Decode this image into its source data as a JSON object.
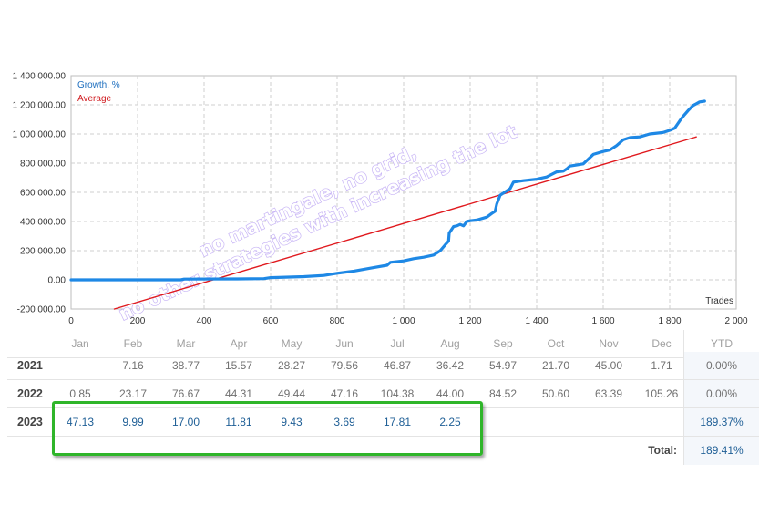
{
  "chart_data": {
    "type": "line",
    "xlabel": "Trades",
    "xlim": [
      0,
      2000
    ],
    "ylim": [
      -200000,
      1400000
    ],
    "x_ticks": [
      "0",
      "200",
      "400",
      "600",
      "800",
      "1 000",
      "1 200",
      "1 400",
      "1 600",
      "1 800",
      "2 000"
    ],
    "y_ticks": [
      "1 400 000.00",
      "1 200 000.00",
      "1 000 000.00",
      "800 000.00",
      "600 000.00",
      "400 000.00",
      "200 000.00",
      "0.00",
      "-200 000.00"
    ],
    "grid": true,
    "legend_position": "top-left",
    "series": [
      {
        "name": "Growth, %",
        "color": "#1e88e5",
        "points": [
          [
            0,
            0
          ],
          [
            100,
            0
          ],
          [
            200,
            0
          ],
          [
            330,
            0
          ],
          [
            340,
            5000
          ],
          [
            500,
            6000
          ],
          [
            580,
            8000
          ],
          [
            600,
            15000
          ],
          [
            700,
            22000
          ],
          [
            760,
            30000
          ],
          [
            800,
            45000
          ],
          [
            850,
            60000
          ],
          [
            900,
            80000
          ],
          [
            950,
            100000
          ],
          [
            960,
            120000
          ],
          [
            1000,
            130000
          ],
          [
            1030,
            145000
          ],
          [
            1060,
            155000
          ],
          [
            1090,
            170000
          ],
          [
            1110,
            200000
          ],
          [
            1125,
            240000
          ],
          [
            1135,
            265000
          ],
          [
            1137,
            320000
          ],
          [
            1150,
            365000
          ],
          [
            1160,
            370000
          ],
          [
            1170,
            380000
          ],
          [
            1180,
            370000
          ],
          [
            1190,
            400000
          ],
          [
            1200,
            405000
          ],
          [
            1220,
            410000
          ],
          [
            1250,
            430000
          ],
          [
            1265,
            455000
          ],
          [
            1275,
            470000
          ],
          [
            1280,
            520000
          ],
          [
            1290,
            580000
          ],
          [
            1300,
            595000
          ],
          [
            1310,
            610000
          ],
          [
            1320,
            625000
          ],
          [
            1330,
            670000
          ],
          [
            1360,
            680000
          ],
          [
            1400,
            690000
          ],
          [
            1430,
            705000
          ],
          [
            1460,
            740000
          ],
          [
            1480,
            745000
          ],
          [
            1490,
            760000
          ],
          [
            1500,
            780000
          ],
          [
            1540,
            795000
          ],
          [
            1570,
            860000
          ],
          [
            1600,
            880000
          ],
          [
            1620,
            890000
          ],
          [
            1640,
            920000
          ],
          [
            1660,
            960000
          ],
          [
            1680,
            975000
          ],
          [
            1710,
            980000
          ],
          [
            1740,
            1000000
          ],
          [
            1780,
            1010000
          ],
          [
            1800,
            1025000
          ],
          [
            1815,
            1040000
          ],
          [
            1830,
            1090000
          ],
          [
            1840,
            1120000
          ],
          [
            1855,
            1160000
          ],
          [
            1870,
            1195000
          ],
          [
            1890,
            1220000
          ],
          [
            1905,
            1225000
          ]
        ]
      },
      {
        "name": "Average",
        "color": "#e0191e",
        "points": [
          [
            130,
            -200000
          ],
          [
            1880,
            980000
          ]
        ]
      }
    ],
    "watermark": [
      "no martingale, no grid,",
      "no other strategies with increasing the lot"
    ]
  },
  "table": {
    "months": [
      "Jan",
      "Feb",
      "Mar",
      "Apr",
      "May",
      "Jun",
      "Jul",
      "Aug",
      "Sep",
      "Oct",
      "Nov",
      "Dec"
    ],
    "ytd_header": "YTD",
    "rows": [
      {
        "year": "2021",
        "values": [
          "",
          "7.16",
          "38.77",
          "15.57",
          "28.27",
          "79.56",
          "46.87",
          "36.42",
          "54.97",
          "21.70",
          "45.00",
          "1.71"
        ],
        "ytd": "0.00%"
      },
      {
        "year": "2022",
        "values": [
          "0.85",
          "23.17",
          "76.67",
          "44.31",
          "49.44",
          "47.16",
          "104.38",
          "44.00",
          "84.52",
          "50.60",
          "63.39",
          "105.26"
        ],
        "ytd": "0.00%"
      },
      {
        "year": "2023",
        "values": [
          "47.13",
          "9.99",
          "17.00",
          "11.81",
          "9.43",
          "3.69",
          "17.81",
          "2.25",
          "",
          "",
          "",
          ""
        ],
        "ytd": "189.37%"
      }
    ],
    "total_label": "Total:",
    "total_value": "189.41%"
  }
}
